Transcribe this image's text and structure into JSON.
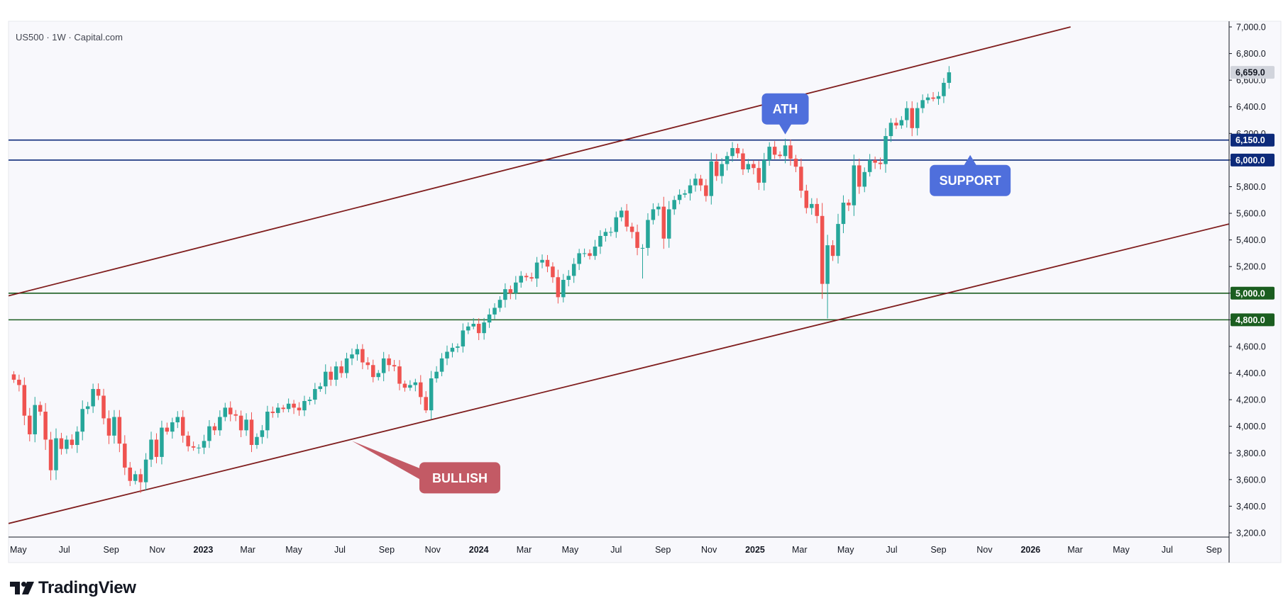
{
  "header": {
    "symbol": "US500 · 1W · Capital.com"
  },
  "brand": {
    "name": "TradingView",
    "icon": "tradingview-logo-icon"
  },
  "chart_data": {
    "type": "candlestick",
    "instrument": "US500",
    "interval": "1W",
    "source": "Capital.com",
    "y_axis": {
      "ylim": [
        3200,
        7000
      ],
      "ticks": [
        3200,
        3400,
        3600,
        3800,
        4000,
        4200,
        4400,
        4600,
        4800,
        5000,
        5200,
        5400,
        5600,
        5800,
        6000,
        6200,
        6400,
        6600,
        6800,
        7000
      ],
      "tick_labels": [
        "3,200.0",
        "3,400.0",
        "3,600.0",
        "3,800.0",
        "4,000.0",
        "4,200.0",
        "4,400.0",
        "4,600.0",
        "4,800.0",
        "5,000.0",
        "5,200.0",
        "5,400.0",
        "5,600.0",
        "5,800.0",
        "6,000.0",
        "6,200.0",
        "6,400.0",
        "6,600.0",
        "6,800.0",
        "7,000.0"
      ]
    },
    "x_axis": {
      "xlim": [
        "2022-04-18",
        "2026-09-21"
      ],
      "ticks": [
        {
          "date": "2022-05-01",
          "label": "May",
          "bold": false
        },
        {
          "date": "2022-07-01",
          "label": "Jul",
          "bold": false
        },
        {
          "date": "2022-09-01",
          "label": "Sep",
          "bold": false
        },
        {
          "date": "2022-11-01",
          "label": "Nov",
          "bold": false
        },
        {
          "date": "2023-01-01",
          "label": "2023",
          "bold": true
        },
        {
          "date": "2023-03-01",
          "label": "Mar",
          "bold": false
        },
        {
          "date": "2023-05-01",
          "label": "May",
          "bold": false
        },
        {
          "date": "2023-07-01",
          "label": "Jul",
          "bold": false
        },
        {
          "date": "2023-09-01",
          "label": "Sep",
          "bold": false
        },
        {
          "date": "2023-11-01",
          "label": "Nov",
          "bold": false
        },
        {
          "date": "2024-01-01",
          "label": "2024",
          "bold": true
        },
        {
          "date": "2024-03-01",
          "label": "Mar",
          "bold": false
        },
        {
          "date": "2024-05-01",
          "label": "May",
          "bold": false
        },
        {
          "date": "2024-07-01",
          "label": "Jul",
          "bold": false
        },
        {
          "date": "2024-09-01",
          "label": "Sep",
          "bold": false
        },
        {
          "date": "2024-11-01",
          "label": "Nov",
          "bold": false
        },
        {
          "date": "2025-01-01",
          "label": "2025",
          "bold": true
        },
        {
          "date": "2025-03-01",
          "label": "Mar",
          "bold": false
        },
        {
          "date": "2025-05-01",
          "label": "May",
          "bold": false
        },
        {
          "date": "2025-07-01",
          "label": "Jul",
          "bold": false
        },
        {
          "date": "2025-09-01",
          "label": "Sep",
          "bold": false
        },
        {
          "date": "2025-11-01",
          "label": "Nov",
          "bold": false
        },
        {
          "date": "2026-01-01",
          "label": "2026",
          "bold": true
        },
        {
          "date": "2026-03-01",
          "label": "Mar",
          "bold": false
        },
        {
          "date": "2026-05-01",
          "label": "May",
          "bold": false
        },
        {
          "date": "2026-07-01",
          "label": "Jul",
          "bold": false
        },
        {
          "date": "2026-09-01",
          "label": "Sep",
          "bold": false
        }
      ]
    },
    "last_price": {
      "value": 6659,
      "label": "6,659.0"
    },
    "candle_colors": {
      "up": "#26a69a",
      "down": "#ef5350"
    },
    "candles_anchor_weekly_closes": [
      [
        "2022-04-25",
        4350
      ],
      [
        "2022-05-02",
        4310
      ],
      [
        "2022-05-09",
        4080
      ],
      [
        "2022-05-16",
        3940
      ],
      [
        "2022-05-23",
        4160
      ],
      [
        "2022-05-30",
        4110
      ],
      [
        "2022-06-06",
        3900
      ],
      [
        "2022-06-13",
        3670
      ],
      [
        "2022-06-20",
        3910
      ],
      [
        "2022-06-27",
        3830
      ],
      [
        "2022-07-04",
        3900
      ],
      [
        "2022-07-11",
        3860
      ],
      [
        "2022-07-18",
        3960
      ],
      [
        "2022-07-25",
        4130
      ],
      [
        "2022-08-01",
        4150
      ],
      [
        "2022-08-08",
        4280
      ],
      [
        "2022-08-15",
        4230
      ],
      [
        "2022-08-22",
        4060
      ],
      [
        "2022-08-29",
        3930
      ],
      [
        "2022-09-05",
        4070
      ],
      [
        "2022-09-12",
        3870
      ],
      [
        "2022-09-19",
        3690
      ],
      [
        "2022-09-26",
        3590
      ],
      [
        "2022-10-03",
        3640
      ],
      [
        "2022-10-10",
        3580
      ],
      [
        "2022-10-17",
        3750
      ],
      [
        "2022-10-24",
        3900
      ],
      [
        "2022-10-31",
        3770
      ],
      [
        "2022-11-07",
        3990
      ],
      [
        "2022-11-14",
        3960
      ],
      [
        "2022-11-21",
        4030
      ],
      [
        "2022-11-28",
        4070
      ],
      [
        "2022-12-05",
        3930
      ],
      [
        "2022-12-12",
        3850
      ],
      [
        "2022-12-19",
        3840
      ],
      [
        "2022-12-26",
        3840
      ],
      [
        "2023-01-02",
        3890
      ],
      [
        "2023-01-09",
        4000
      ],
      [
        "2023-01-16",
        3970
      ],
      [
        "2023-01-23",
        4070
      ],
      [
        "2023-01-30",
        4140
      ],
      [
        "2023-02-06",
        4090
      ],
      [
        "2023-02-13",
        4080
      ],
      [
        "2023-02-20",
        3970
      ],
      [
        "2023-02-27",
        4050
      ],
      [
        "2023-03-06",
        3860
      ],
      [
        "2023-03-13",
        3920
      ],
      [
        "2023-03-20",
        3970
      ],
      [
        "2023-03-27",
        4110
      ],
      [
        "2023-04-03",
        4100
      ],
      [
        "2023-04-10",
        4140
      ],
      [
        "2023-04-17",
        4130
      ],
      [
        "2023-04-24",
        4170
      ],
      [
        "2023-05-01",
        4140
      ],
      [
        "2023-05-08",
        4120
      ],
      [
        "2023-05-15",
        4190
      ],
      [
        "2023-05-22",
        4200
      ],
      [
        "2023-05-29",
        4280
      ],
      [
        "2023-06-05",
        4300
      ],
      [
        "2023-06-12",
        4410
      ],
      [
        "2023-06-19",
        4350
      ],
      [
        "2023-06-26",
        4450
      ],
      [
        "2023-07-03",
        4400
      ],
      [
        "2023-07-10",
        4510
      ],
      [
        "2023-07-17",
        4540
      ],
      [
        "2023-07-24",
        4580
      ],
      [
        "2023-07-31",
        4480
      ],
      [
        "2023-08-07",
        4460
      ],
      [
        "2023-08-14",
        4370
      ],
      [
        "2023-08-21",
        4400
      ],
      [
        "2023-08-28",
        4510
      ],
      [
        "2023-09-04",
        4460
      ],
      [
        "2023-09-11",
        4450
      ],
      [
        "2023-09-18",
        4320
      ],
      [
        "2023-09-25",
        4290
      ],
      [
        "2023-10-02",
        4310
      ],
      [
        "2023-10-09",
        4330
      ],
      [
        "2023-10-16",
        4220
      ],
      [
        "2023-10-23",
        4120
      ],
      [
        "2023-10-30",
        4360
      ],
      [
        "2023-11-06",
        4410
      ],
      [
        "2023-11-13",
        4510
      ],
      [
        "2023-11-20",
        4560
      ],
      [
        "2023-11-27",
        4590
      ],
      [
        "2023-12-04",
        4600
      ],
      [
        "2023-12-11",
        4720
      ],
      [
        "2023-12-18",
        4750
      ],
      [
        "2023-12-25",
        4770
      ],
      [
        "2024-01-01",
        4700
      ],
      [
        "2024-01-08",
        4780
      ],
      [
        "2024-01-15",
        4840
      ],
      [
        "2024-01-22",
        4890
      ],
      [
        "2024-01-29",
        4950
      ],
      [
        "2024-02-05",
        5030
      ],
      [
        "2024-02-12",
        5000
      ],
      [
        "2024-02-19",
        5080
      ],
      [
        "2024-02-26",
        5130
      ],
      [
        "2024-03-04",
        5120
      ],
      [
        "2024-03-11",
        5110
      ],
      [
        "2024-03-18",
        5230
      ],
      [
        "2024-03-25",
        5250
      ],
      [
        "2024-04-01",
        5200
      ],
      [
        "2024-04-08",
        5120
      ],
      [
        "2024-04-15",
        4970
      ],
      [
        "2024-04-22",
        5100
      ],
      [
        "2024-04-29",
        5130
      ],
      [
        "2024-05-06",
        5220
      ],
      [
        "2024-05-13",
        5300
      ],
      [
        "2024-05-20",
        5300
      ],
      [
        "2024-05-27",
        5280
      ],
      [
        "2024-06-03",
        5350
      ],
      [
        "2024-06-10",
        5430
      ],
      [
        "2024-06-17",
        5460
      ],
      [
        "2024-06-24",
        5460
      ],
      [
        "2024-07-01",
        5570
      ],
      [
        "2024-07-08",
        5620
      ],
      [
        "2024-07-15",
        5500
      ],
      [
        "2024-07-22",
        5460
      ],
      [
        "2024-07-29",
        5340
      ],
      [
        "2024-08-05",
        5340
      ],
      [
        "2024-08-12",
        5550
      ],
      [
        "2024-08-19",
        5630
      ],
      [
        "2024-08-26",
        5650
      ],
      [
        "2024-09-02",
        5410
      ],
      [
        "2024-09-09",
        5630
      ],
      [
        "2024-09-16",
        5700
      ],
      [
        "2024-09-23",
        5740
      ],
      [
        "2024-09-30",
        5750
      ],
      [
        "2024-10-07",
        5810
      ],
      [
        "2024-10-14",
        5860
      ],
      [
        "2024-10-21",
        5810
      ],
      [
        "2024-10-28",
        5730
      ],
      [
        "2024-11-04",
        5990
      ],
      [
        "2024-11-11",
        5880
      ],
      [
        "2024-11-18",
        5970
      ],
      [
        "2024-11-25",
        6030
      ],
      [
        "2024-12-02",
        6090
      ],
      [
        "2024-12-09",
        6050
      ],
      [
        "2024-12-16",
        5930
      ],
      [
        "2024-12-23",
        5970
      ],
      [
        "2024-12-30",
        5940
      ],
      [
        "2025-01-06",
        5830
      ],
      [
        "2025-01-13",
        6000
      ],
      [
        "2025-01-20",
        6100
      ],
      [
        "2025-01-27",
        6040
      ],
      [
        "2025-02-03",
        6030
      ],
      [
        "2025-02-10",
        6110
      ],
      [
        "2025-02-17",
        6010
      ],
      [
        "2025-02-24",
        5950
      ],
      [
        "2025-03-03",
        5770
      ],
      [
        "2025-03-10",
        5640
      ],
      [
        "2025-03-17",
        5670
      ],
      [
        "2025-03-24",
        5580
      ],
      [
        "2025-03-31",
        5070
      ],
      [
        "2025-04-07",
        5360
      ],
      [
        "2025-04-14",
        5280
      ],
      [
        "2025-04-21",
        5520
      ],
      [
        "2025-04-28",
        5680
      ],
      [
        "2025-05-05",
        5660
      ],
      [
        "2025-05-12",
        5960
      ],
      [
        "2025-05-19",
        5800
      ],
      [
        "2025-05-26",
        5910
      ],
      [
        "2025-06-02",
        6000
      ],
      [
        "2025-06-09",
        5980
      ],
      [
        "2025-06-16",
        5970
      ],
      [
        "2025-06-23",
        6180
      ],
      [
        "2025-06-30",
        6280
      ],
      [
        "2025-07-07",
        6260
      ],
      [
        "2025-07-14",
        6300
      ],
      [
        "2025-07-21",
        6390
      ],
      [
        "2025-07-28",
        6240
      ],
      [
        "2025-08-04",
        6390
      ],
      [
        "2025-08-11",
        6450
      ],
      [
        "2025-08-18",
        6470
      ],
      [
        "2025-08-25",
        6460
      ],
      [
        "2025-09-01",
        6480
      ],
      [
        "2025-09-08",
        6580
      ],
      [
        "2025-09-15",
        6659
      ]
    ],
    "horizontal_levels": [
      {
        "value": 6150,
        "label": "6,150.0",
        "color": "#0d2a7a"
      },
      {
        "value": 6000,
        "label": "6,000.0",
        "color": "#0d2a7a"
      },
      {
        "value": 5000,
        "label": "5,000.0",
        "color": "#1b5e20"
      },
      {
        "value": 4800,
        "label": "4,800.0",
        "color": "#1b5e20"
      }
    ],
    "trendlines": [
      {
        "name": "channel-upper",
        "color": "#7f1d1d",
        "from": [
          "2022-04-18",
          4980
        ],
        "to": [
          "2026-02-23",
          7000
        ]
      },
      {
        "name": "channel-lower",
        "color": "#7f1d1d",
        "from": [
          "2022-04-18",
          3270
        ],
        "to": [
          "2026-09-21",
          5520
        ]
      }
    ],
    "callouts": [
      {
        "text": "ATH",
        "color": "#4f6fdc",
        "pointer": "down",
        "anchor": [
          "2025-02-10",
          6150
        ]
      },
      {
        "text": "SUPPORT",
        "color": "#4f6fdc",
        "pointer": "up",
        "anchor": [
          "2025-10-13",
          6070
        ]
      },
      {
        "text": "BULLISH",
        "color": "#c35a65",
        "pointer": "from-line",
        "anchor": [
          "2023-07-17",
          3890
        ]
      }
    ]
  }
}
